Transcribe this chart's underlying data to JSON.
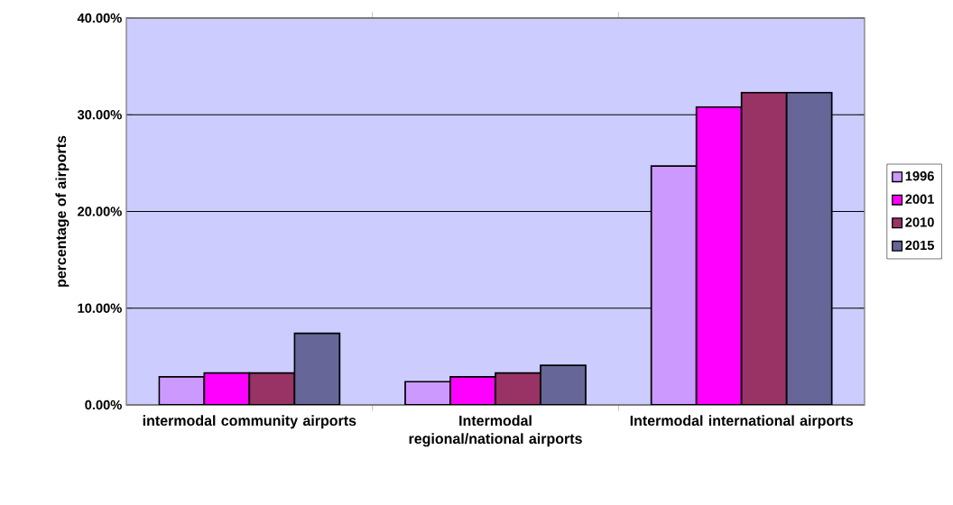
{
  "chart_data": {
    "type": "bar",
    "ylabel": "percentage of airports",
    "categories": [
      "intermodal community airports",
      "Intermodal regional/national airports",
      "Intermodal international airports"
    ],
    "series": [
      {
        "name": "1996",
        "color": "#cc99ff",
        "values": [
          2.9,
          2.4,
          24.7
        ]
      },
      {
        "name": "2001",
        "color": "#ff00ff",
        "values": [
          3.3,
          2.9,
          30.8
        ]
      },
      {
        "name": "2010",
        "color": "#993366",
        "values": [
          3.3,
          3.3,
          32.3
        ]
      },
      {
        "name": "2015",
        "color": "#666699",
        "values": [
          7.4,
          4.1,
          32.3
        ]
      }
    ],
    "ylim": [
      0,
      40
    ],
    "yticks": [
      {
        "value": 0,
        "label": "0.00%"
      },
      {
        "value": 10,
        "label": "10.00%"
      },
      {
        "value": 20,
        "label": "20.00%"
      },
      {
        "value": 30,
        "label": "30.00%"
      },
      {
        "value": 40,
        "label": "40.00%"
      }
    ],
    "grid": "y",
    "legend": "right"
  }
}
